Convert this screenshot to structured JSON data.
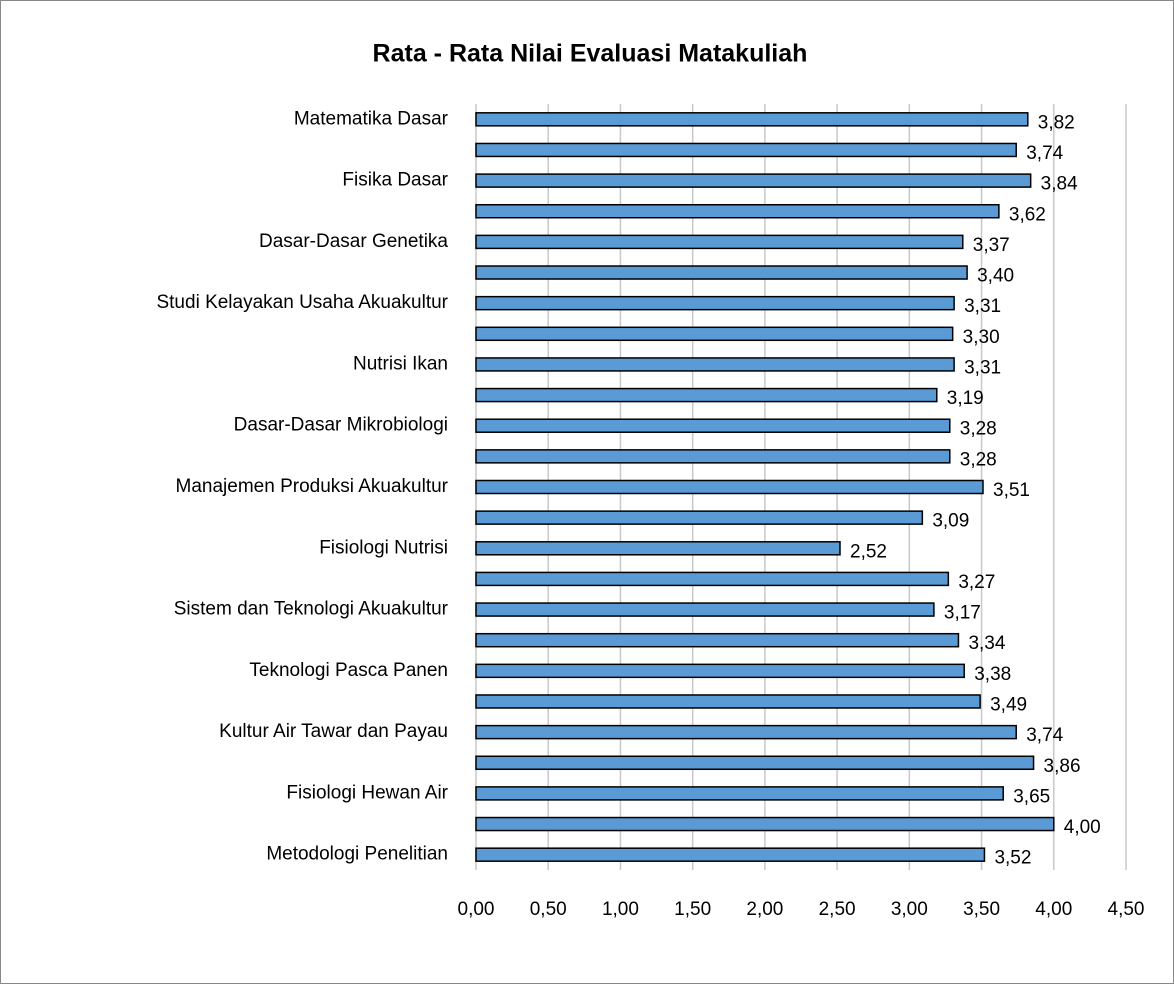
{
  "chart_data": {
    "type": "barh",
    "title": "Rata - Rata Nilai Evaluasi Matakuliah",
    "categories": [
      "Matematika Dasar",
      null,
      "Fisika Dasar",
      null,
      "Dasar-Dasar Genetika",
      null,
      "Studi Kelayakan Usaha Akuakultur",
      null,
      "Nutrisi Ikan",
      null,
      "Dasar-Dasar Mikrobiologi",
      null,
      "Manajemen Produksi Akuakultur",
      null,
      "Fisiologi Nutrisi",
      null,
      "Sistem dan Teknologi Akuakultur",
      null,
      "Teknologi Pasca Panen",
      null,
      "Kultur Air Tawar dan Payau",
      null,
      "Fisiologi Hewan Air",
      null,
      "Metodologi Penelitian"
    ],
    "values": [
      3.82,
      3.74,
      3.84,
      3.62,
      3.37,
      3.4,
      3.31,
      3.3,
      3.31,
      3.19,
      3.28,
      3.28,
      3.51,
      3.09,
      2.52,
      3.27,
      3.17,
      3.34,
      3.38,
      3.49,
      3.74,
      3.86,
      3.65,
      4.0,
      3.52
    ],
    "value_labels": [
      "3,82",
      "3,74",
      "3,84",
      "3,62",
      "3,37",
      "3,40",
      "3,31",
      "3,30",
      "3,31",
      "3,19",
      "3,28",
      "3,28",
      "3,51",
      "3,09",
      "2,52",
      "3,27",
      "3,17",
      "3,34",
      "3,38",
      "3,49",
      "3,74",
      "3,86",
      "3,65",
      "4,00",
      "3,52"
    ],
    "color": "#5b9bd5",
    "xlim": [
      0,
      4.5
    ],
    "xticks": [
      {
        "value": 0,
        "label": "0,00"
      },
      {
        "value": 0.5,
        "label": "0,50"
      },
      {
        "value": 1,
        "label": "1,00"
      },
      {
        "value": 1.5,
        "label": "1,50"
      },
      {
        "value": 2,
        "label": "2,00"
      },
      {
        "value": 2.5,
        "label": "2,50"
      },
      {
        "value": 3,
        "label": "3,00"
      },
      {
        "value": 3.5,
        "label": "3,50"
      },
      {
        "value": 4,
        "label": "4,00"
      },
      {
        "value": 4.5,
        "label": "4,50"
      }
    ],
    "grid": true
  }
}
